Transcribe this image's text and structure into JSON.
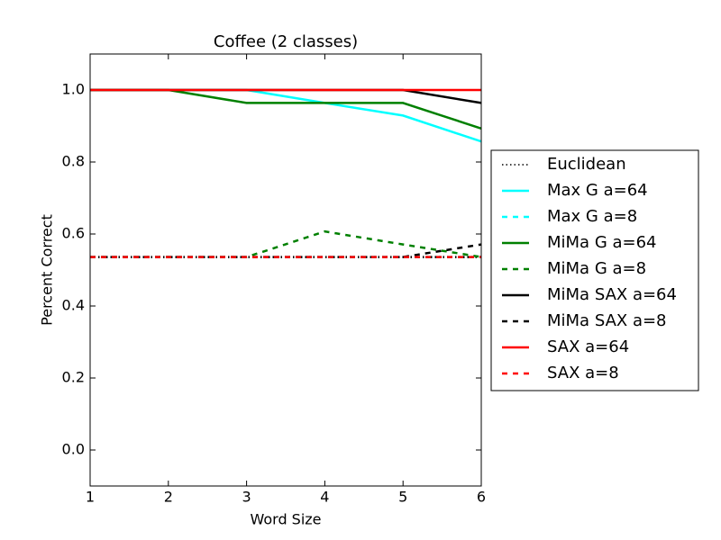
{
  "chart_data": {
    "type": "line",
    "title": "Coffee (2 classes)",
    "xlabel": "Word Size",
    "ylabel": "Percent Correct",
    "x": [
      1,
      2,
      3,
      4,
      5,
      6
    ],
    "xlim": [
      1,
      6
    ],
    "xticks": [
      1,
      2,
      3,
      4,
      5,
      6
    ],
    "ylim": [
      -0.1,
      1.1
    ],
    "yticks": [
      {
        "value": 0,
        "label": "0.0"
      },
      0.2,
      0.4,
      0.6,
      0.8,
      {
        "value": 1,
        "label": "1.0"
      }
    ],
    "grid": false,
    "legend": "outside right",
    "series": [
      {
        "name": "Euclidean",
        "color": "#000000",
        "linestyle": "dotted",
        "values": [
          0.536,
          0.536,
          0.536,
          0.536,
          0.536,
          0.536
        ]
      },
      {
        "name": "Max G a=64",
        "color": "#00ffff",
        "linestyle": "solid",
        "values": [
          1.0,
          1.0,
          1.0,
          0.964,
          0.929,
          0.857
        ]
      },
      {
        "name": "Max G a=8",
        "color": "#00ffff",
        "linestyle": "dashed",
        "values": [
          0.536,
          0.536,
          0.536,
          0.536,
          0.536,
          0.536
        ]
      },
      {
        "name": "MiMa G a=64",
        "color": "#008000",
        "linestyle": "solid",
        "values": [
          1.0,
          1.0,
          0.964,
          0.964,
          0.964,
          0.893
        ]
      },
      {
        "name": "MiMa G a=8",
        "color": "#008000",
        "linestyle": "dashed",
        "values": [
          0.536,
          0.536,
          0.536,
          0.607,
          0.571,
          0.536
        ]
      },
      {
        "name": "MiMa SAX a=64",
        "color": "#000000",
        "linestyle": "solid",
        "values": [
          1.0,
          1.0,
          1.0,
          1.0,
          1.0,
          0.964
        ]
      },
      {
        "name": "MiMa SAX a=8",
        "color": "#000000",
        "linestyle": "dashed",
        "values": [
          0.536,
          0.536,
          0.536,
          0.536,
          0.536,
          0.571
        ]
      },
      {
        "name": "SAX a=64",
        "color": "#ff0000",
        "linestyle": "solid",
        "values": [
          1.0,
          1.0,
          1.0,
          1.0,
          1.0,
          1.0
        ]
      },
      {
        "name": "SAX a=8",
        "color": "#ff0000",
        "linestyle": "dashed",
        "values": [
          0.536,
          0.536,
          0.536,
          0.536,
          0.536,
          0.536
        ]
      }
    ]
  }
}
